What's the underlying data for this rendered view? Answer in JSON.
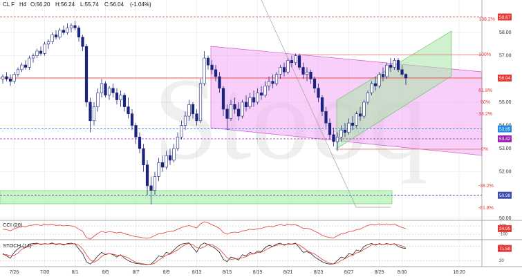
{
  "chart_data": {
    "type": "candlestick",
    "header": {
      "symbol": "CL F",
      "interval": "H4",
      "open": "O:56.20",
      "high": "H:56.24",
      "low": "L:55.74",
      "close": "C:56.04",
      "change": "(-1.04%)"
    },
    "watermark": "Stooq",
    "categories": [
      null,
      null,
      null,
      "7/26",
      null,
      null,
      null,
      null,
      null,
      null,
      null,
      "7/30",
      null,
      null,
      null,
      null,
      null,
      null,
      null,
      "8/1",
      null,
      null,
      null,
      null,
      null,
      null,
      null,
      "8/5",
      null,
      null,
      null,
      null,
      null,
      null,
      null,
      "8/7",
      null,
      null,
      null,
      null,
      null,
      null,
      null,
      "8/9",
      null,
      null,
      null,
      null,
      null,
      null,
      null,
      "8/13",
      null,
      null,
      null,
      null,
      null,
      null,
      null,
      "8/15",
      null,
      null,
      null,
      null,
      null,
      null,
      null,
      "8/19",
      null,
      null,
      null,
      null,
      null,
      null,
      null,
      "8/21",
      null,
      null,
      null,
      null,
      null,
      null,
      null,
      "8/23",
      null,
      null,
      null,
      null,
      null,
      null,
      null,
      "8/27",
      null,
      null,
      null,
      null,
      null,
      null,
      null,
      "8/29",
      null,
      null,
      null,
      null,
      null,
      "8:00",
      null,
      null,
      null,
      null,
      null,
      null,
      null,
      null,
      null,
      null,
      null,
      null,
      null,
      null,
      "16:20"
    ],
    "ohlc": [
      [
        56.0,
        56.2,
        55.8,
        56.1
      ],
      [
        56.1,
        56.3,
        55.9,
        56.0
      ],
      [
        56.0,
        56.2,
        55.7,
        55.9
      ],
      [
        55.9,
        56.3,
        55.8,
        56.2
      ],
      [
        56.2,
        56.5,
        56.1,
        56.4
      ],
      [
        56.4,
        56.7,
        56.3,
        56.6
      ],
      [
        56.6,
        56.8,
        56.4,
        56.5
      ],
      [
        56.5,
        57.0,
        56.4,
        56.9
      ],
      [
        56.9,
        57.1,
        56.7,
        57.0
      ],
      [
        57.0,
        57.3,
        56.9,
        57.2
      ],
      [
        57.2,
        57.4,
        57.0,
        57.1
      ],
      [
        57.1,
        57.6,
        57.0,
        57.5
      ],
      [
        57.5,
        57.7,
        57.3,
        57.6
      ],
      [
        57.6,
        58.0,
        57.5,
        57.9
      ],
      [
        57.9,
        58.1,
        57.7,
        57.8
      ],
      [
        57.8,
        58.2,
        57.7,
        58.1
      ],
      [
        58.1,
        58.3,
        57.9,
        58.0
      ],
      [
        58.0,
        58.4,
        57.9,
        58.2
      ],
      [
        58.2,
        58.4,
        58.0,
        58.3
      ],
      [
        58.3,
        58.5,
        58.1,
        58.2
      ],
      [
        58.2,
        58.3,
        57.6,
        57.8
      ],
      [
        57.8,
        57.9,
        57.2,
        57.4
      ],
      [
        57.4,
        57.5,
        54.8,
        55.0
      ],
      [
        55.0,
        55.2,
        53.7,
        54.2
      ],
      [
        54.2,
        55.0,
        54.0,
        54.8
      ],
      [
        54.8,
        55.6,
        54.6,
        55.4
      ],
      [
        55.4,
        56.0,
        55.2,
        55.8
      ],
      [
        55.8,
        55.9,
        55.2,
        55.3
      ],
      [
        55.3,
        55.7,
        55.1,
        55.6
      ],
      [
        55.6,
        55.8,
        55.2,
        55.4
      ],
      [
        55.4,
        55.6,
        54.9,
        55.1
      ],
      [
        55.1,
        55.5,
        54.8,
        55.3
      ],
      [
        55.3,
        55.4,
        54.6,
        54.8
      ],
      [
        54.8,
        55.2,
        54.3,
        54.5
      ],
      [
        54.5,
        54.7,
        53.8,
        54.0
      ],
      [
        54.0,
        54.1,
        53.2,
        53.5
      ],
      [
        53.5,
        53.7,
        52.8,
        53.0
      ],
      [
        53.0,
        53.2,
        52.0,
        52.3
      ],
      [
        52.3,
        52.5,
        51.0,
        51.4
      ],
      [
        51.4,
        51.8,
        50.6,
        51.2
      ],
      [
        51.2,
        52.0,
        51.0,
        51.8
      ],
      [
        51.8,
        52.6,
        51.6,
        52.4
      ],
      [
        52.4,
        52.7,
        52.0,
        52.2
      ],
      [
        52.2,
        52.9,
        52.1,
        52.7
      ],
      [
        52.7,
        53.0,
        52.3,
        52.5
      ],
      [
        52.5,
        53.2,
        52.4,
        53.0
      ],
      [
        53.0,
        53.7,
        52.9,
        53.5
      ],
      [
        53.5,
        54.2,
        53.4,
        54.0
      ],
      [
        54.0,
        54.6,
        53.8,
        54.4
      ],
      [
        54.4,
        55.1,
        54.2,
        54.9
      ],
      [
        54.9,
        55.0,
        54.3,
        54.5
      ],
      [
        54.5,
        54.7,
        54.0,
        54.2
      ],
      [
        54.2,
        56.0,
        54.1,
        55.8
      ],
      [
        55.8,
        57.2,
        55.7,
        56.9
      ],
      [
        56.9,
        57.0,
        56.4,
        56.6
      ],
      [
        56.6,
        56.8,
        56.2,
        56.4
      ],
      [
        56.4,
        56.6,
        55.9,
        56.1
      ],
      [
        56.1,
        56.3,
        55.4,
        55.6
      ],
      [
        55.6,
        55.7,
        54.4,
        54.7
      ],
      [
        54.7,
        54.9,
        53.8,
        54.3
      ],
      [
        54.3,
        55.1,
        54.2,
        54.9
      ],
      [
        54.9,
        55.2,
        54.5,
        54.7
      ],
      [
        54.7,
        55.0,
        54.2,
        54.4
      ],
      [
        54.4,
        55.1,
        54.3,
        55.0
      ],
      [
        55.0,
        55.3,
        54.6,
        54.8
      ],
      [
        54.8,
        55.4,
        54.7,
        55.2
      ],
      [
        55.2,
        55.5,
        54.8,
        55.0
      ],
      [
        55.0,
        55.6,
        54.9,
        55.4
      ],
      [
        55.4,
        55.7,
        55.1,
        55.3
      ],
      [
        55.3,
        55.9,
        55.2,
        55.7
      ],
      [
        55.7,
        56.1,
        55.5,
        55.9
      ],
      [
        55.9,
        56.2,
        55.6,
        55.8
      ],
      [
        55.8,
        56.3,
        55.7,
        56.2
      ],
      [
        56.2,
        56.6,
        56.0,
        56.5
      ],
      [
        56.5,
        56.7,
        56.1,
        56.3
      ],
      [
        56.3,
        56.9,
        56.2,
        56.8
      ],
      [
        56.8,
        57.0,
        56.5,
        56.7
      ],
      [
        56.7,
        57.1,
        56.6,
        57.0
      ],
      [
        57.0,
        57.1,
        56.4,
        56.5
      ],
      [
        56.5,
        56.7,
        56.0,
        56.2
      ],
      [
        56.2,
        56.5,
        55.9,
        56.3
      ],
      [
        56.3,
        56.4,
        55.8,
        56.0
      ],
      [
        56.0,
        56.1,
        55.4,
        55.6
      ],
      [
        55.6,
        55.8,
        55.0,
        55.2
      ],
      [
        55.2,
        55.3,
        54.4,
        54.6
      ],
      [
        54.6,
        54.8,
        53.9,
        54.1
      ],
      [
        54.1,
        54.3,
        53.4,
        53.6
      ],
      [
        53.6,
        53.9,
        53.1,
        53.3
      ],
      [
        53.3,
        53.7,
        52.9,
        53.5
      ],
      [
        53.5,
        54.0,
        53.3,
        53.8
      ],
      [
        53.8,
        54.1,
        53.5,
        53.7
      ],
      [
        53.7,
        54.3,
        53.6,
        54.1
      ],
      [
        54.1,
        54.4,
        53.8,
        54.0
      ],
      [
        54.0,
        54.6,
        53.9,
        54.5
      ],
      [
        54.5,
        54.8,
        54.2,
        54.4
      ],
      [
        54.4,
        55.1,
        54.3,
        55.0
      ],
      [
        55.0,
        55.5,
        54.9,
        55.4
      ],
      [
        55.4,
        55.9,
        55.3,
        55.8
      ],
      [
        55.8,
        56.1,
        55.5,
        55.7
      ],
      [
        55.7,
        56.3,
        55.6,
        56.2
      ],
      [
        56.2,
        56.5,
        55.9,
        56.1
      ],
      [
        56.1,
        56.7,
        56.0,
        56.6
      ],
      [
        56.6,
        56.9,
        56.3,
        56.5
      ],
      [
        56.5,
        56.9,
        56.4,
        56.8
      ],
      [
        56.8,
        56.9,
        56.3,
        56.4
      ],
      [
        56.4,
        56.6,
        56.1,
        56.2
      ],
      [
        56.2,
        56.24,
        55.74,
        56.04
      ],
      null,
      null,
      null,
      null,
      null,
      null,
      null,
      null,
      null,
      null,
      null,
      null,
      null,
      null
    ],
    "up_color": "#ffffff",
    "down_color": "#1a237e",
    "outline_color": "#1a237e",
    "ylim": [
      49.94,
      59.4
    ],
    "yticks": [
      {
        "value": 50,
        "label": "50.00"
      },
      {
        "value": 51,
        "label": "51.00"
      },
      {
        "value": 52,
        "label": "52.00"
      },
      {
        "value": 53,
        "label": "53.00"
      },
      {
        "value": 54,
        "label": "54.00"
      },
      {
        "value": 55,
        "label": "55.00"
      },
      {
        "value": 56,
        "label": "56.00"
      },
      {
        "value": 57,
        "label": "57.00"
      },
      {
        "value": 58,
        "label": "58.00"
      }
    ],
    "grid": true,
    "price_lines": [
      {
        "value": 58.67,
        "color": "#e53935",
        "style": "dashed"
      },
      {
        "value": 56.04,
        "color": "#e53935",
        "style": "solid"
      },
      {
        "value": 53.85,
        "color": "#1e88e5",
        "style": "dashed"
      },
      {
        "value": 53.42,
        "color": "#9c27b0",
        "style": "dashed"
      },
      {
        "value": 50.99,
        "color": "#3949ab",
        "style": "dashed"
      }
    ],
    "fib_labels": [
      "138.2%",
      "100%",
      "61.8%",
      "50%",
      "38.2%",
      "0%",
      "-38.2%",
      "-61.8%"
    ],
    "indicators": [
      {
        "name": "CCI (20)",
        "ylim": [
          -200,
          200
        ],
        "yticks": [
          100,
          -100
        ],
        "series": [
          {
            "color": "#e53935",
            "values": [
              20,
              10,
              -20,
              30,
              60,
              90,
              80,
              110,
              120,
              130,
              110,
              130,
              120,
              140,
              110,
              120,
              100,
              110,
              100,
              80,
              20,
              -30,
              -180,
              -220,
              -150,
              -80,
              -30,
              -60,
              -40,
              -50,
              -70,
              -50,
              -90,
              -110,
              -140,
              -160,
              -170,
              -190,
              -200,
              -180,
              -130,
              -90,
              -80,
              -50,
              -40,
              -20,
              20,
              60,
              90,
              110,
              80,
              50,
              150,
              200,
              170,
              130,
              90,
              40,
              -60,
              -100,
              -60,
              -50,
              -60,
              -20,
              -10,
              20,
              10,
              30,
              40,
              70,
              90,
              80,
              110,
              130,
              110,
              130,
              120,
              130,
              90,
              40,
              40,
              20,
              -30,
              -70,
              -130,
              -160,
              -180,
              -190,
              -140,
              -90,
              -80,
              -40,
              -30,
              10,
              20,
              70,
              110,
              140,
              120,
              150,
              130,
              150,
              130,
              140,
              100,
              60,
              34.95,
              null,
              null,
              null,
              null,
              null,
              null,
              null,
              null,
              null,
              null,
              null,
              null,
              null,
              null
            ]
          }
        ]
      },
      {
        "name": "STOCH (14)",
        "ylim": [
          0,
          100
        ],
        "yticks": [
          80,
          20
        ],
        "series": [
          {
            "color": "#212121",
            "values": [
              50,
              40,
              30,
              55,
              70,
              80,
              75,
              90,
              92,
              94,
              88,
              92,
              90,
              95,
              88,
              92,
              86,
              92,
              94,
              90,
              70,
              50,
              15,
              5,
              20,
              40,
              55,
              45,
              50,
              45,
              35,
              45,
              30,
              20,
              12,
              8,
              6,
              4,
              3,
              5,
              20,
              40,
              35,
              55,
              50,
              65,
              80,
              90,
              93,
              95,
              75,
              55,
              85,
              95,
              88,
              80,
              70,
              55,
              25,
              15,
              35,
              30,
              22,
              45,
              40,
              55,
              48,
              60,
              58,
              75,
              85,
              80,
              90,
              94,
              85,
              92,
              90,
              94,
              75,
              55,
              58,
              50,
              35,
              25,
              15,
              8,
              5,
              6,
              20,
              35,
              30,
              50,
              45,
              65,
              60,
              80,
              88,
              93,
              85,
              92,
              88,
              93,
              88,
              92,
              80,
              74,
              71.58,
              null,
              null,
              null,
              null,
              null,
              null,
              null,
              null,
              null,
              null,
              null,
              null,
              null,
              null
            ]
          },
          {
            "color": "#e53935",
            "values": [
              45,
              45,
              40,
              42,
              52,
              68,
              75,
              82,
              86,
              92,
              91,
              91,
              90,
              92,
              91,
              92,
              89,
              90,
              91,
              92,
              85,
              70,
              45,
              23,
              13,
              22,
              38,
              47,
              50,
              47,
              43,
              42,
              37,
              32,
              21,
              13,
              9,
              6,
              4,
              4,
              9,
              22,
              32,
              43,
              47,
              57,
              65,
              78,
              88,
              93,
              88,
              75,
              72,
              78,
              89,
              88,
              79,
              68,
              50,
              32,
              25,
              27,
              29,
              32,
              36,
              47,
              48,
              54,
              55,
              64,
              73,
              80,
              85,
              88,
              90,
              90,
              89,
              92,
              86,
              75,
              63,
              54,
              48,
              37,
              25,
              16,
              9,
              6,
              10,
              20,
              28,
              38,
              42,
              53,
              57,
              68,
              76,
              87,
              89,
              90,
              88,
              91,
              90,
              91,
              87,
              82,
              75,
              null,
              null,
              null,
              null,
              null,
              null,
              null,
              null,
              null,
              null,
              null,
              null,
              null,
              null
            ]
          }
        ]
      }
    ]
  }
}
